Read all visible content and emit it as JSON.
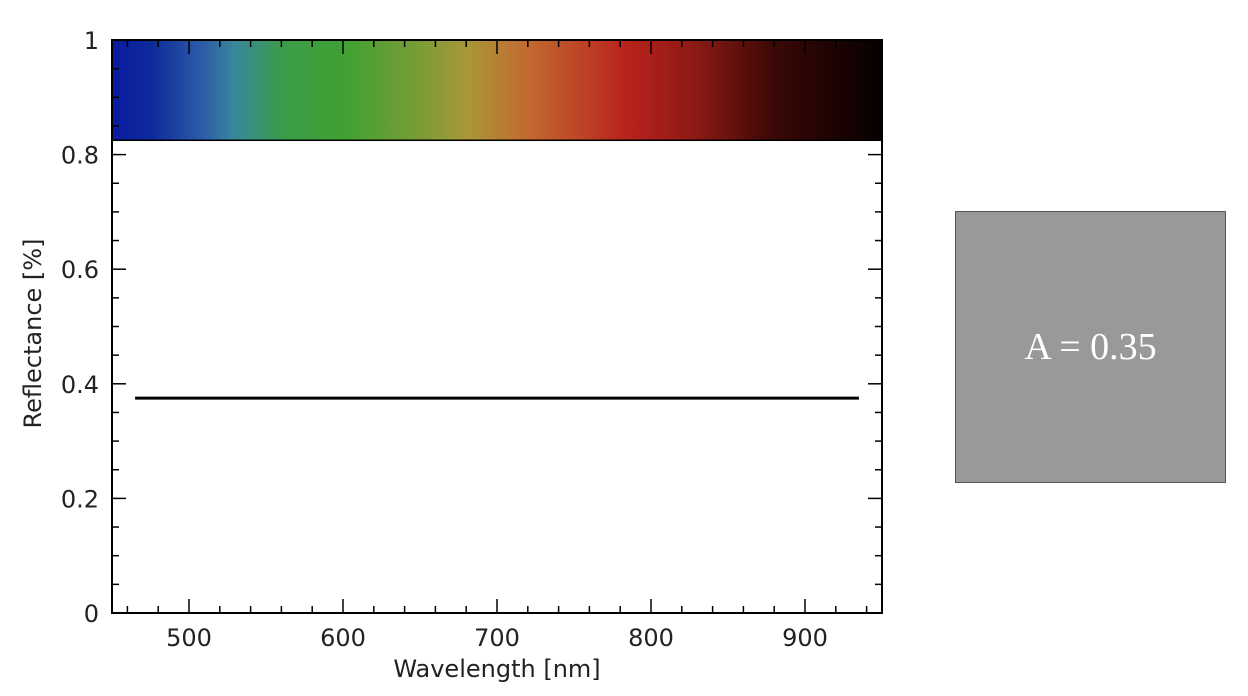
{
  "chart_data": {
    "type": "line",
    "xlabel": "Wavelength [nm]",
    "ylabel": "Reflectance [%]",
    "xlim": [
      450,
      950
    ],
    "ylim": [
      0,
      1
    ],
    "x_major_ticks": [
      500,
      600,
      700,
      800,
      900
    ],
    "x_minor_step": 20,
    "y_major_ticks": [
      0,
      0.2,
      0.4,
      0.6,
      0.8,
      1
    ],
    "y_tick_labels": [
      "0",
      "0.2",
      "0.4",
      "0.6",
      "0.8",
      "1"
    ],
    "y_minor_step": 0.05,
    "grid": false,
    "spectrum_band": {
      "y_range": [
        0.825,
        1
      ],
      "colors": [
        {
          "x": 450,
          "color": "#0a1aa0"
        },
        {
          "x": 475,
          "color": "#0c2a9a"
        },
        {
          "x": 510,
          "color": "#2f5da8"
        },
        {
          "x": 530,
          "color": "#38889a"
        },
        {
          "x": 560,
          "color": "#3a9c4a"
        },
        {
          "x": 600,
          "color": "#3fa132"
        },
        {
          "x": 650,
          "color": "#7a9c36"
        },
        {
          "x": 680,
          "color": "#a89838"
        },
        {
          "x": 720,
          "color": "#c26a30"
        },
        {
          "x": 785,
          "color": "#b8221c"
        },
        {
          "x": 830,
          "color": "#8a1a14"
        },
        {
          "x": 880,
          "color": "#3a0806"
        },
        {
          "x": 950,
          "color": "#050000"
        }
      ]
    },
    "series": [
      {
        "x": [
          465,
          935
        ],
        "y": [
          0.375,
          0.375
        ],
        "color": "#000000"
      }
    ]
  },
  "swatch": {
    "label": "A = 0.35",
    "color": "#999999"
  }
}
